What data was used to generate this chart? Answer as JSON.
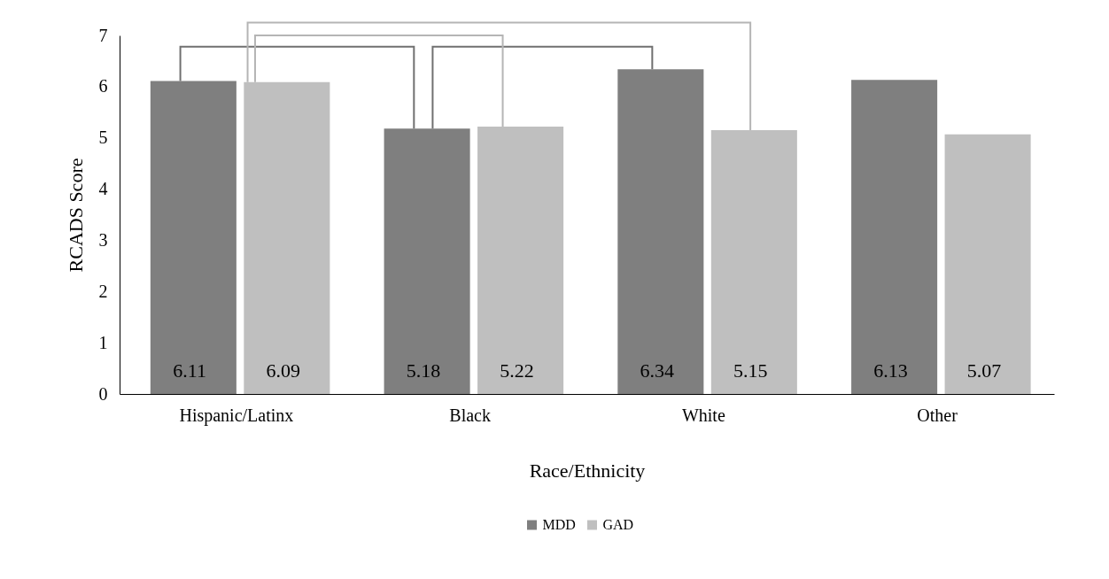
{
  "chart_data": {
    "type": "bar",
    "xlabel": "Race/Ethnicity",
    "ylabel": "RCADS Score",
    "categories": [
      "Hispanic/Latinx",
      "Black",
      "White",
      "Other"
    ],
    "series": [
      {
        "name": "MDD",
        "color": "#7f7f7f",
        "values": [
          6.11,
          5.18,
          6.34,
          6.13
        ]
      },
      {
        "name": "GAD",
        "color": "#bfbfbf",
        "values": [
          6.09,
          5.22,
          5.15,
          5.07
        ]
      }
    ],
    "ylim": [
      0,
      7
    ],
    "yticks": [
      0,
      1,
      2,
      3,
      4,
      5,
      6,
      7
    ],
    "grid": false,
    "legend": "bottom",
    "data_labels": true
  }
}
